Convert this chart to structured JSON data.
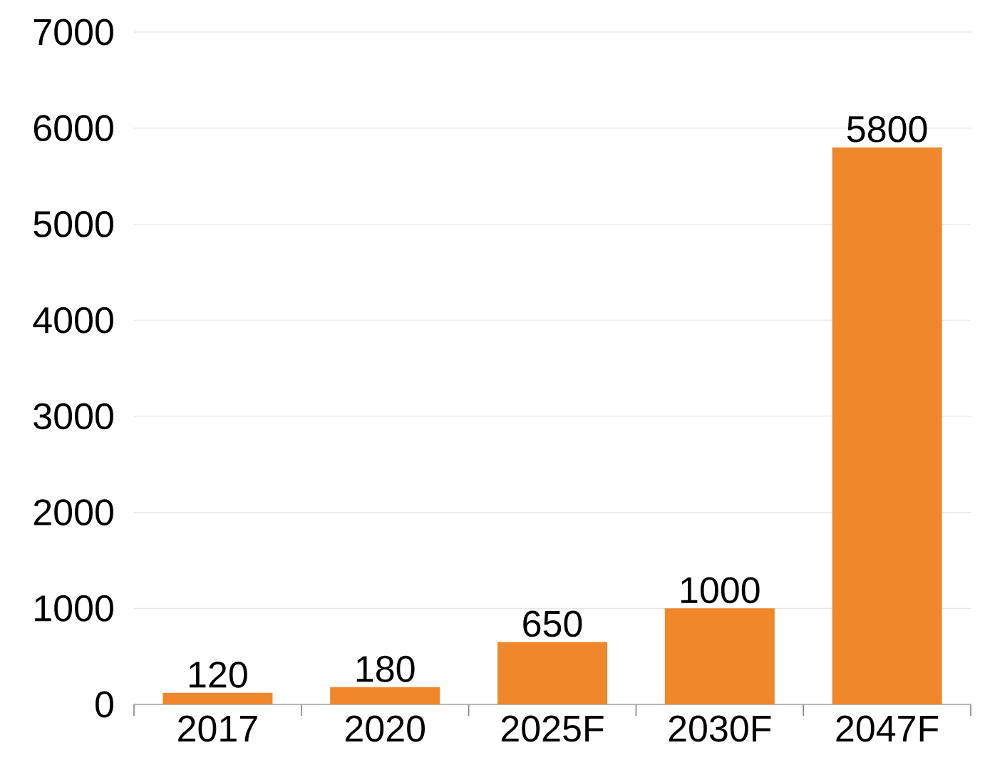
{
  "chart_data": {
    "type": "bar",
    "categories": [
      "2017",
      "2020",
      "2025F",
      "2030F",
      "2047F"
    ],
    "values": [
      120,
      180,
      650,
      1000,
      5800
    ],
    "color": "#f0872a",
    "ylim": [
      0,
      7000
    ],
    "yticks": [
      0,
      1000,
      2000,
      3000,
      4000,
      5000,
      6000,
      7000
    ],
    "grid": "y",
    "data_labels": true
  }
}
